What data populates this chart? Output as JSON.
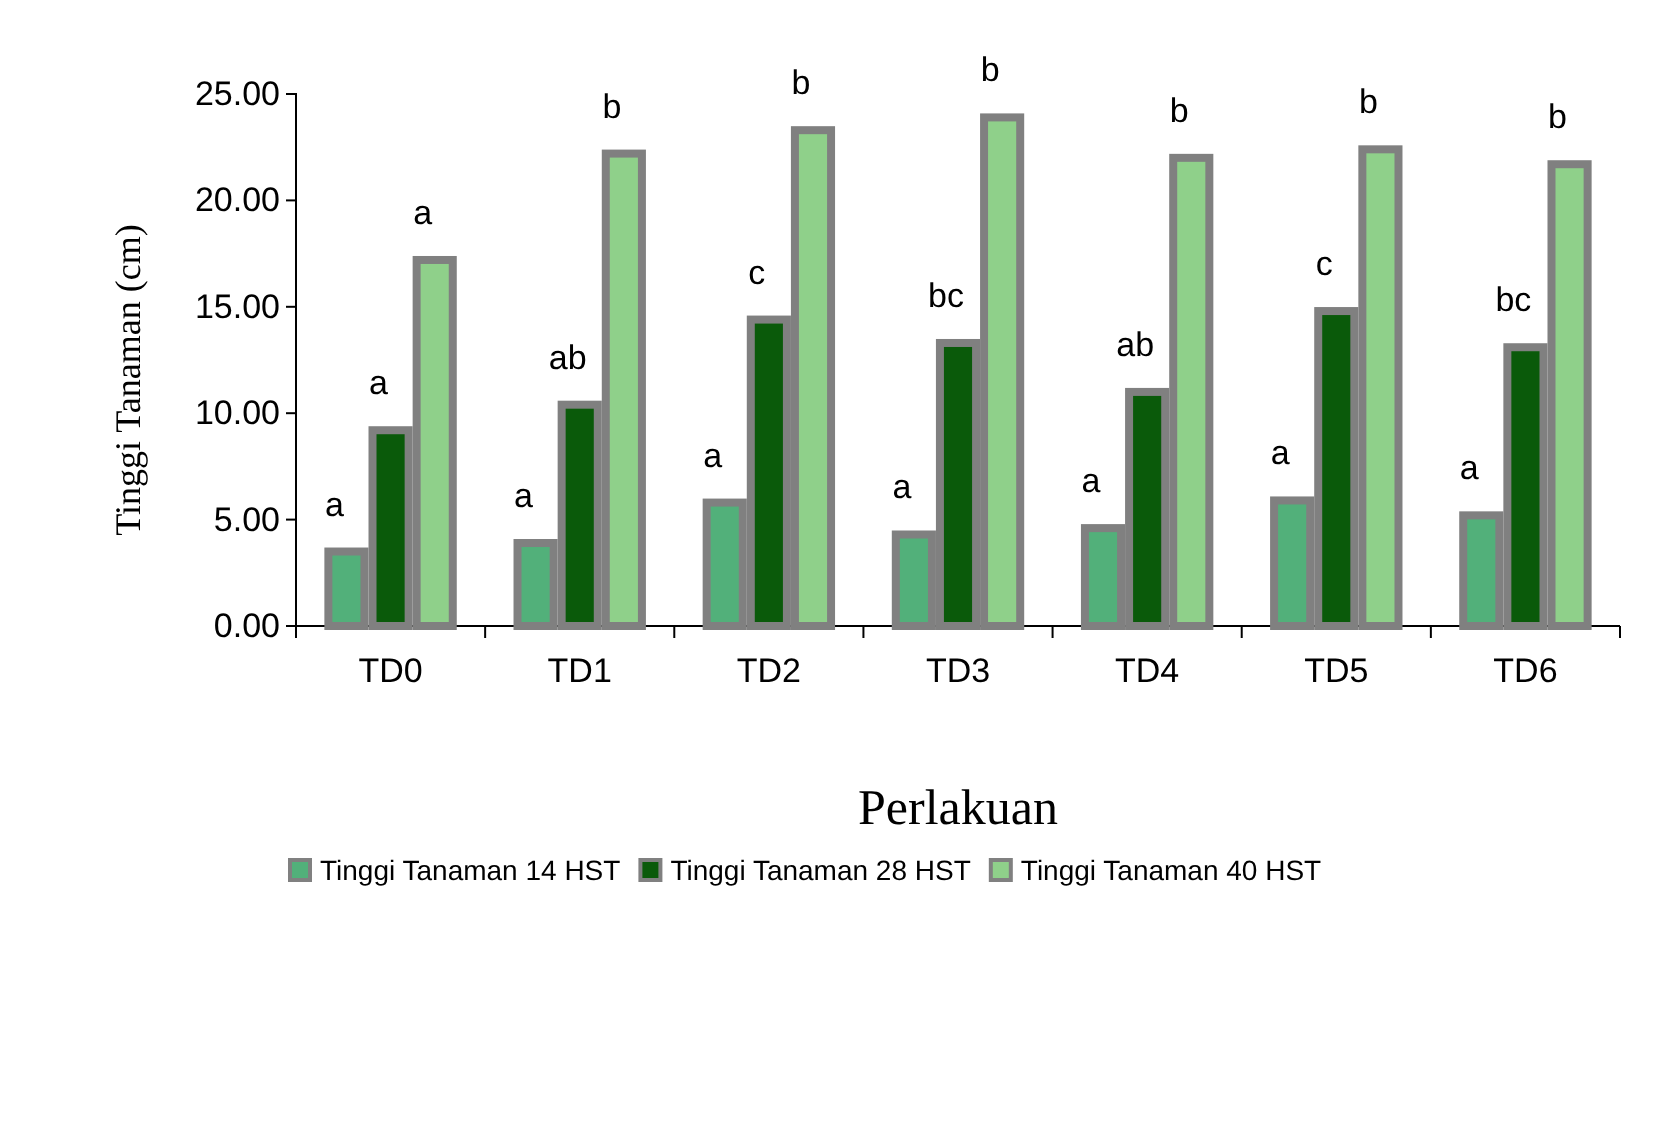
{
  "chart_data": {
    "type": "bar",
    "xlabel": "Perlakuan",
    "ylabel": "Tinggi Tanaman (cm)",
    "categories": [
      "TD0",
      "TD1",
      "TD2",
      "TD3",
      "TD4",
      "TD5",
      "TD6"
    ],
    "series": [
      {
        "name": "Tinggi Tanaman 14 HST",
        "color": "#52b07a",
        "values": [
          3.5,
          3.9,
          5.8,
          4.3,
          4.6,
          5.9,
          5.2
        ],
        "value_labels": [
          "a",
          "a",
          "a",
          "a",
          "a",
          "a",
          "a"
        ]
      },
      {
        "name": "Tinggi Tanaman 28 HST",
        "color": "#0a5a0a",
        "values": [
          9.2,
          10.4,
          14.4,
          13.3,
          11.0,
          14.8,
          13.1
        ],
        "value_labels": [
          "a",
          "ab",
          "c",
          "bc",
          "ab",
          "c",
          "bc"
        ]
      },
      {
        "name": "Tinggi Tanaman 40 HST",
        "color": "#8fd08a",
        "values": [
          17.2,
          22.2,
          23.3,
          23.9,
          22.0,
          22.4,
          21.7
        ],
        "value_labels": [
          "a",
          "b",
          "b",
          "b",
          "b",
          "b",
          "b"
        ]
      }
    ],
    "ylim": [
      0,
      25
    ],
    "yticks": [
      {
        "value": 0,
        "label": "0.00"
      },
      {
        "value": 5,
        "label": "5.00"
      },
      {
        "value": 10,
        "label": "10.00"
      },
      {
        "value": 15,
        "label": "15.00"
      },
      {
        "value": 20,
        "label": "20.00"
      },
      {
        "value": 25,
        "label": "25.00"
      }
    ],
    "grid": false,
    "legend": "bottom"
  }
}
